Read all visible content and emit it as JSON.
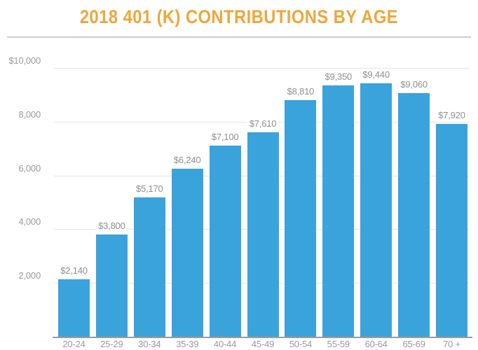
{
  "title": "2018 401 (K) CONTRIBUTIONS BY AGE",
  "chart_data": {
    "type": "bar",
    "title": "2018 401 (K) CONTRIBUTIONS BY AGE",
    "categories": [
      "20-24",
      "25-29",
      "30-34",
      "35-39",
      "40-44",
      "45-49",
      "50-54",
      "55-59",
      "60-64",
      "65-69",
      "70 +"
    ],
    "values": [
      2140,
      3800,
      5170,
      6240,
      7100,
      7610,
      8810,
      9350,
      9440,
      9060,
      7920
    ],
    "value_labels": [
      "$2,140",
      "$3,800",
      "$5,170",
      "$6,240",
      "$7,100",
      "$7,610",
      "$8,810",
      "$9,350",
      "$9,440",
      "$9,060",
      "$7,920"
    ],
    "xlabel": "",
    "ylabel": "",
    "ylim": [
      0,
      10000
    ],
    "yticks": [
      {
        "value": 2000,
        "label": "2,000"
      },
      {
        "value": 4000,
        "label": "4,000"
      },
      {
        "value": 6000,
        "label": "6,000"
      },
      {
        "value": 8000,
        "label": "8,000"
      },
      {
        "value": 10000,
        "label": "$10,000"
      }
    ],
    "grid": true,
    "legend": null
  },
  "colors": {
    "title": "#efa63c",
    "bar": "#3aa3db",
    "gridline": "#e5e5e5",
    "axis_line": "#9b9b9b",
    "tick_label": "#9a9a9a",
    "value_label": "#8f8f8f",
    "divider": "#cdcdcd"
  }
}
